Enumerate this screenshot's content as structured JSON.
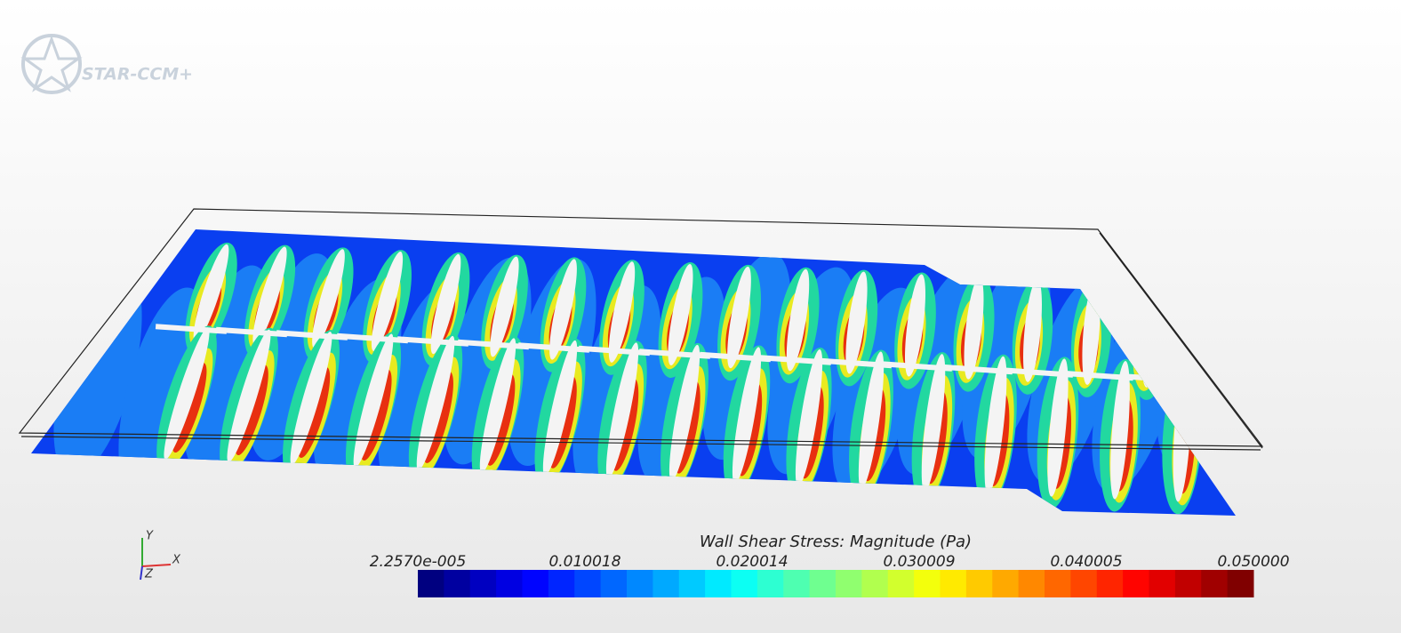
{
  "logo": {
    "text": "STAR-CCM+"
  },
  "colorbar": {
    "title": "Wall Shear Stress: Magnitude (Pa)",
    "tick_labels": [
      "2.2570e-005",
      "0.010018",
      "0.020014",
      "0.030009",
      "0.040005",
      "0.050000"
    ]
  },
  "triad": {
    "x": "X",
    "y": "Y",
    "z": "Z"
  }
}
